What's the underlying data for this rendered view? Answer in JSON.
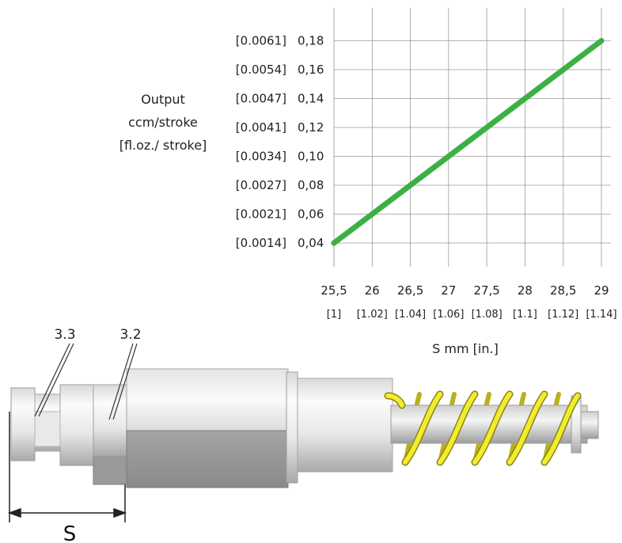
{
  "chart_data": {
    "type": "line",
    "ylabel_lines": [
      "Output",
      "ccm/stroke",
      "[fl.oz./ stroke]"
    ],
    "xlabel": "S mm [in.]",
    "xlim": [
      25.5,
      29
    ],
    "ylim": [
      0.04,
      0.18
    ],
    "grid": true,
    "x_ticks": [
      "25,5",
      "26",
      "26,5",
      "27",
      "27,5",
      "28",
      "28,5",
      "29"
    ],
    "x_ticks_in": [
      "[1]",
      "[1.02]",
      "[1.04]",
      "[1.06]",
      "[1.08]",
      "[1.1]",
      "[1.12]",
      "[1.14]"
    ],
    "y_ticks": [
      "0,04",
      "0,06",
      "0,08",
      "0,10",
      "0,12",
      "0,14",
      "0,16",
      "0,18"
    ],
    "y_ticks_in": [
      "[0.0014]",
      "[0.0021]",
      "[0.0027]",
      "[0.0034]",
      "[0.0041]",
      "[0.0047]",
      "[0.0054]",
      "[0.0061]"
    ],
    "series": [
      {
        "x": [
          25.5,
          29
        ],
        "y": [
          0.04,
          0.18
        ],
        "color": "#3cb044"
      }
    ]
  },
  "diagram": {
    "callout_1": "3.3",
    "callout_2": "3.2",
    "dimension_label": "S",
    "spring_color": "#f2ec2e"
  }
}
